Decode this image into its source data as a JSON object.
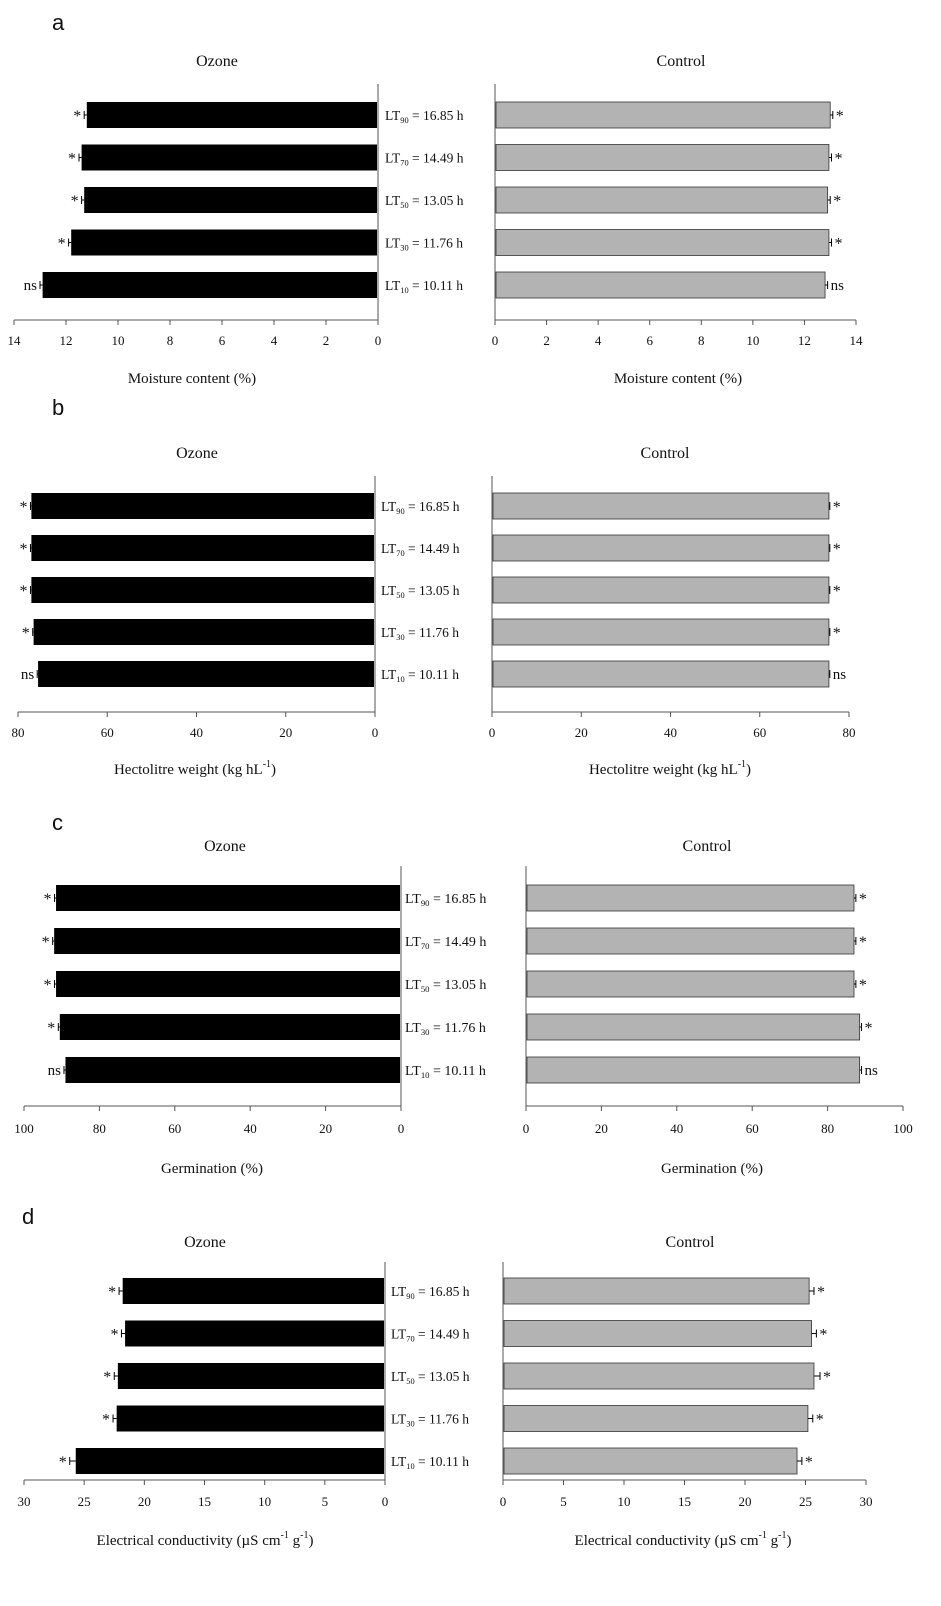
{
  "colors": {
    "ozone_bar": "#000000",
    "control_bar": "#b3b3b3",
    "axis": "#555555",
    "text": "#111111"
  },
  "lt_labels": [
    {
      "prefix": "LT",
      "sub": "90",
      "rest": " = 16.85 h"
    },
    {
      "prefix": "LT",
      "sub": "70",
      "rest": " = 14.49 h"
    },
    {
      "prefix": "LT",
      "sub": "50",
      "rest": " = 13.05 h"
    },
    {
      "prefix": "LT",
      "sub": "30",
      "rest": " = 11.76 h"
    },
    {
      "prefix": "LT",
      "sub": "10",
      "rest": " = 10.11 h"
    }
  ],
  "chart_data": [
    {
      "type": "bar",
      "panel_label": "a",
      "left_title": "Ozone",
      "right_title": "Control",
      "categories": [
        "LT90 = 16.85 h",
        "LT70 = 14.49 h",
        "LT50 = 13.05 h",
        "LT30 = 11.76 h",
        "LT10 = 10.11 h"
      ],
      "series": [
        {
          "name": "Ozone",
          "values": [
            11.2,
            11.4,
            11.3,
            11.8,
            12.9
          ],
          "errors": [
            0.1,
            0.1,
            0.1,
            0.1,
            0.1
          ],
          "marks": [
            "*",
            "*",
            "*",
            "*",
            "ns"
          ]
        },
        {
          "name": "Control",
          "values": [
            13.0,
            12.95,
            12.9,
            12.95,
            12.8
          ],
          "errors": [
            0.1,
            0.1,
            0.1,
            0.1,
            0.1
          ],
          "marks": [
            "*",
            "*",
            "*",
            "*",
            "ns"
          ]
        }
      ],
      "xlabel_left": "Moisture content (%)",
      "xlabel_right": "Moisture content (%)",
      "xlim": [
        0,
        14
      ],
      "ticks": [
        0,
        2,
        4,
        6,
        8,
        10,
        12,
        14
      ]
    },
    {
      "type": "bar",
      "panel_label": "b",
      "left_title": "Ozone",
      "right_title": "Control",
      "categories": [
        "LT90 = 16.85 h",
        "LT70 = 14.49 h",
        "LT50 = 13.05 h",
        "LT30 = 11.76 h",
        "LT10 = 10.11 h"
      ],
      "series": [
        {
          "name": "Ozone",
          "values": [
            77,
            77,
            77,
            76.5,
            75.5
          ],
          "errors": [
            0.2,
            0.2,
            0.2,
            0.2,
            0.2
          ],
          "marks": [
            "*",
            "*",
            "*",
            "*",
            "ns"
          ]
        },
        {
          "name": "Control",
          "values": [
            75.5,
            75.5,
            75.5,
            75.5,
            75.5
          ],
          "errors": [
            0.2,
            0.2,
            0.2,
            0.2,
            0.2
          ],
          "marks": [
            "*",
            "*",
            "*",
            "*",
            "ns"
          ]
        }
      ],
      "xlabel_left": "Hectolitre weight (kg hL",
      "xlabel_right": "Hectolitre weight (kg hL",
      "xlabel_sup": "-1",
      "xlabel_tail": ")",
      "xlim": [
        0,
        80
      ],
      "ticks": [
        0,
        20,
        40,
        60,
        80
      ]
    },
    {
      "type": "bar",
      "panel_label": "c",
      "left_title": "Ozone",
      "right_title": "Control",
      "categories": [
        "LT90 = 16.85 h",
        "LT70 = 14.49 h",
        "LT50 = 13.05 h",
        "LT30 = 11.76 h",
        "LT10 = 10.11 h"
      ],
      "series": [
        {
          "name": "Ozone",
          "values": [
            91.5,
            92,
            91.5,
            90.5,
            89
          ],
          "errors": [
            0.4,
            0.4,
            0.4,
            0.4,
            0.4
          ],
          "marks": [
            "*",
            "*",
            "*",
            "*",
            "ns"
          ]
        },
        {
          "name": "Control",
          "values": [
            87,
            87,
            87,
            88.5,
            88.5
          ],
          "errors": [
            0.5,
            0.5,
            0.5,
            0.5,
            0.5
          ],
          "marks": [
            "*",
            "*",
            "*",
            "*",
            "ns"
          ]
        }
      ],
      "xlabel_left": "Germination (%)",
      "xlabel_right": "Germination (%)",
      "xlim": [
        0,
        100
      ],
      "ticks": [
        0,
        20,
        40,
        60,
        80,
        100
      ]
    },
    {
      "type": "bar",
      "panel_label": "d",
      "left_title": "Ozone",
      "right_title": "Control",
      "categories": [
        "LT90 = 16.85 h",
        "LT70 = 14.49 h",
        "LT50 = 13.05 h",
        "LT30 = 11.76 h",
        "LT10 = 10.11 h"
      ],
      "series": [
        {
          "name": "Ozone",
          "values": [
            21.8,
            21.6,
            22.2,
            22.3,
            25.7
          ],
          "errors": [
            0.3,
            0.3,
            0.3,
            0.3,
            0.5
          ],
          "marks": [
            "*",
            "*",
            "*",
            "*",
            "*"
          ]
        },
        {
          "name": "Control",
          "values": [
            25.3,
            25.5,
            25.7,
            25.2,
            24.3
          ],
          "errors": [
            0.4,
            0.4,
            0.5,
            0.4,
            0.4
          ],
          "marks": [
            "*",
            "*",
            "*",
            "*",
            "*"
          ]
        }
      ],
      "xlabel_left": "Electrical conductivity (µS cm",
      "xlabel_right": "Electrical conductivity (µS cm",
      "xlabel_units": [
        " g",
        ")"
      ],
      "xlabel_sup": "-1",
      "xlim": [
        0,
        30
      ],
      "ticks": [
        0,
        5,
        10,
        15,
        20,
        25,
        30
      ]
    }
  ]
}
